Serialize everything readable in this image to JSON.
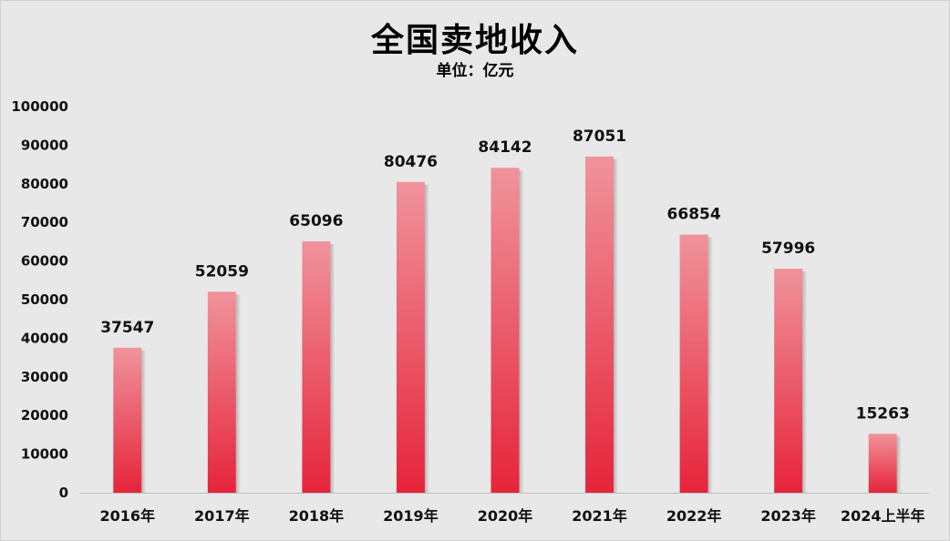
{
  "chart_data": {
    "type": "bar",
    "title": "全国卖地收入",
    "subtitle": "单位：亿元",
    "categories": [
      "2016年",
      "2017年",
      "2018年",
      "2019年",
      "2020年",
      "2021年",
      "2022年",
      "2023年",
      "2024上半年"
    ],
    "values": [
      37547,
      52059,
      65096,
      80476,
      84142,
      87051,
      66854,
      57996,
      15263
    ],
    "data_labels": [
      "37547",
      "52059",
      "65096",
      "80476",
      "84142",
      "87051",
      "66854",
      "57996",
      "15263"
    ],
    "yticks": [
      "0",
      "10000",
      "20000",
      "30000",
      "40000",
      "50000",
      "60000",
      "70000",
      "80000",
      "90000",
      "100000"
    ],
    "ylim": [
      0,
      100000
    ],
    "grid": false,
    "legend": "none",
    "colors": {
      "bar_top": "#f0939b",
      "bar_bottom": "#e6243a",
      "background": "#e8e8e8",
      "axis": "#bfbfbf"
    }
  }
}
